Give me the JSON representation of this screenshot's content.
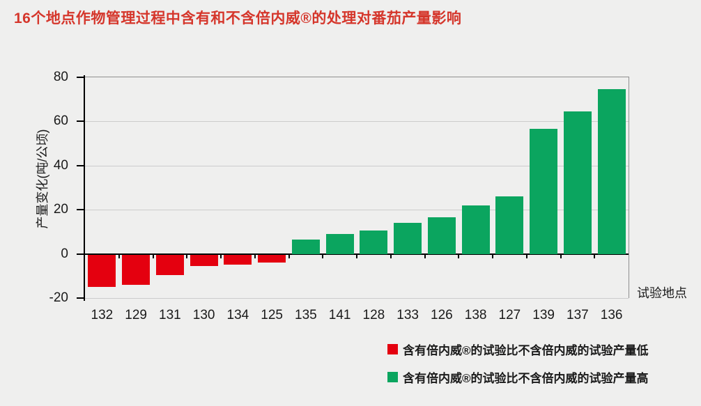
{
  "title": "16个地点作物管理过程中含有和不含倍内威®的处理对番茄产量影响",
  "colors": {
    "title_text": "#D5362B",
    "negative": "#E4000F",
    "positive": "#0BA55F",
    "background": "#EFEFEE",
    "axis": "#000000",
    "gridline": "#CCCCCC",
    "plot_border": "#8F8F8F",
    "label_text": "#1A1A1A"
  },
  "chart_data": {
    "type": "bar",
    "title": "16个地点作物管理过程中含有和不含倍内威®的处理对番茄产量影响",
    "categories": [
      "132",
      "129",
      "131",
      "130",
      "134",
      "125",
      "135",
      "141",
      "128",
      "133",
      "126",
      "138",
      "127",
      "139",
      "137",
      "136"
    ],
    "values": [
      -15,
      -14,
      -9.5,
      -5.5,
      -5,
      -4,
      6.5,
      9,
      10.5,
      14,
      16.5,
      22,
      26,
      56.5,
      64.5,
      74.5
    ],
    "xlabel": "试验地点",
    "ylabel": "产量变化(吨/公顷)",
    "ylim": [
      -20,
      80
    ],
    "yticks": [
      80,
      60,
      40,
      20,
      0,
      -20
    ],
    "grid": true,
    "legend_position": "bottom-right",
    "bar_color_rule": "negative values red, positive values green"
  },
  "legend": {
    "items": [
      {
        "label": "含有倍内威®的试验比不含倍内威的试验产量低",
        "color": "#E4000F"
      },
      {
        "label": "含有倍内威®的试验比不含倍内威的试验产量高",
        "color": "#0BA55F"
      }
    ]
  }
}
